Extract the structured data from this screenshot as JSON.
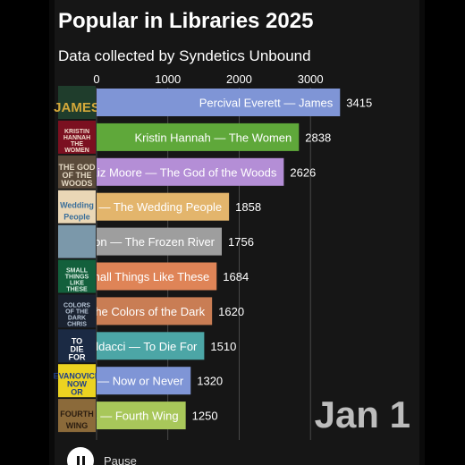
{
  "header": {
    "title": "Popular in Libraries 2025",
    "subtitle": "Data collected by Syndetics Unbound"
  },
  "date_label": "Jan 1",
  "controls": {
    "pause_label": "Pause"
  },
  "chart_data": {
    "type": "bar",
    "orientation": "horizontal",
    "title": "Popular in Libraries 2025",
    "subtitle": "Data collected by Syndetics Unbound",
    "x_ticks": [
      0,
      1000,
      2000,
      3000
    ],
    "xlim": [
      0,
      3700
    ],
    "grid": true,
    "categories": [
      "Percival Everett — James",
      "Kristin Hannah — The Women",
      "Liz Moore — The God of the Woods",
      "ach — The Wedding People",
      "awhon — The Frozen River",
      "Small Things Like These",
      "l the Colors of the Dark",
      "Baldacci — To Die For",
      "ch — Now or Never",
      "os — Fourth Wing"
    ],
    "values": [
      3415,
      2838,
      2626,
      1858,
      1756,
      1684,
      1620,
      1510,
      1320,
      1250
    ],
    "value_labels": [
      "3415",
      "2838",
      "2626",
      "1858",
      "1756",
      "1684",
      "1620",
      "1510",
      "1320",
      "1250"
    ],
    "colors": [
      "#7f95d6",
      "#5fa83a",
      "#b48ed6",
      "#e3b56c",
      "#9e9e9e",
      "#df8457",
      "#c97d54",
      "#4ca6a6",
      "#7f95d6",
      "#a8c75a"
    ],
    "cover_texts": [
      [
        "JAMES"
      ],
      [
        "KRISTIN",
        "HANNAH",
        "THE",
        "WOMEN"
      ],
      [
        "THE GOD",
        "OF THE",
        "WOODS"
      ],
      [
        "Wedding",
        "People"
      ],
      [],
      [
        "SMALL",
        "THINGS",
        "LIKE",
        "THESE"
      ],
      [
        "COLORS",
        "OF THE",
        "DARK",
        "CHRIS"
      ],
      [
        "TO",
        "DIE",
        "FOR"
      ],
      [
        "EVANOVICH",
        "NOW",
        "OR"
      ],
      [
        "FOURTH",
        "WING"
      ]
    ],
    "cover_colors": [
      "#1f3d2c",
      "#7b1020",
      "#5a4a3a",
      "#ead7b6",
      "#7b98aa",
      "#13603c",
      "#1a2230",
      "#1b2a44",
      "#ecd321",
      "#8b6a3a"
    ],
    "cover_text_colors": [
      "#d4a83a",
      "#f2dfcf",
      "#e3d7c3",
      "#3a6f9a",
      "#ffffff",
      "#dff0e6",
      "#b9c7d8",
      "#ffffff",
      "#1f3f88",
      "#2b1d10"
    ]
  }
}
